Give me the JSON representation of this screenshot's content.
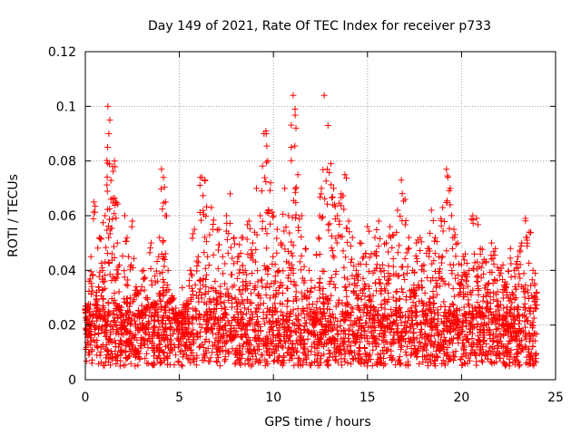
{
  "chart_data": {
    "type": "scatter",
    "title": "Day 149 of 2021, Rate Of TEC Index for receiver p733",
    "xlabel": "GPS time / hours",
    "ylabel": "ROTI / TECUs",
    "xlim": [
      0,
      25
    ],
    "ylim": [
      0,
      0.12
    ],
    "xticks": [
      "0",
      "5",
      "10",
      "15",
      "20",
      "25"
    ],
    "yticks": [
      "0",
      "0.02",
      "0.04",
      "0.06",
      "0.08",
      "0.1",
      "0.12"
    ],
    "grid": true,
    "marker": "+",
    "color": "#ff0000",
    "series": [
      {
        "x": [
          0.05,
          0.15,
          0.3,
          0.45,
          0.6,
          0.75,
          0.9,
          1.05,
          1.2,
          1.25,
          1.3,
          1.45,
          1.55,
          1.6,
          1.7,
          1.8,
          1.95,
          2.1,
          2.3,
          2.5,
          2.7,
          2.9,
          3.1,
          3.3,
          3.5,
          3.7,
          3.9,
          4.05,
          4.15,
          4.25,
          4.4,
          4.6,
          4.8,
          5.0,
          5.2,
          5.4,
          5.6,
          5.8,
          6.0,
          6.2,
          6.35,
          6.5,
          6.7,
          6.9,
          7.1,
          7.3,
          7.5,
          7.7,
          7.9,
          8.1,
          8.3,
          8.5,
          8.7,
          8.9,
          9.1,
          9.3,
          9.5,
          9.6,
          9.7,
          9.85,
          10.0,
          10.2,
          10.4,
          10.6,
          10.8,
          10.95,
          11.05,
          11.15,
          11.3,
          11.5,
          11.7,
          11.9,
          12.1,
          12.25,
          12.4,
          12.55,
          12.7,
          12.9,
          13.05,
          13.2,
          13.4,
          13.6,
          13.8,
          14.0,
          14.2,
          14.4,
          14.6,
          14.8,
          15.0,
          15.2,
          15.4,
          15.6,
          15.8,
          16.0,
          16.2,
          16.4,
          16.6,
          16.8,
          17.0,
          17.2,
          17.4,
          17.6,
          17.8,
          18.0,
          18.2,
          18.4,
          18.6,
          18.8,
          19.0,
          19.2,
          19.4,
          19.6,
          19.8,
          20.0,
          20.2,
          20.4,
          20.6,
          20.8,
          21.0,
          21.2,
          21.4,
          21.6,
          21.8,
          22.0,
          22.2,
          22.4,
          22.6,
          22.8,
          23.0,
          23.2,
          23.4,
          23.6,
          23.8,
          24.0
        ],
        "y": [
          0.027,
          0.013,
          0.045,
          0.065,
          0.032,
          0.052,
          0.041,
          0.06,
          0.1,
          0.09,
          0.095,
          0.078,
          0.08,
          0.065,
          0.05,
          0.027,
          0.019,
          0.06,
          0.045,
          0.058,
          0.034,
          0.018,
          0.04,
          0.03,
          0.05,
          0.028,
          0.045,
          0.077,
          0.074,
          0.06,
          0.04,
          0.03,
          0.022,
          0.018,
          0.015,
          0.028,
          0.04,
          0.055,
          0.045,
          0.074,
          0.073,
          0.045,
          0.063,
          0.036,
          0.055,
          0.045,
          0.06,
          0.068,
          0.052,
          0.045,
          0.052,
          0.04,
          0.058,
          0.05,
          0.07,
          0.06,
          0.09,
          0.091,
          0.08,
          0.072,
          0.06,
          0.055,
          0.05,
          0.07,
          0.06,
          0.085,
          0.104,
          0.099,
          0.075,
          0.06,
          0.048,
          0.04,
          0.02,
          0.02,
          0.052,
          0.07,
          0.104,
          0.093,
          0.079,
          0.07,
          0.06,
          0.068,
          0.075,
          0.058,
          0.052,
          0.04,
          0.05,
          0.045,
          0.056,
          0.046,
          0.052,
          0.058,
          0.042,
          0.05,
          0.056,
          0.053,
          0.062,
          0.073,
          0.066,
          0.052,
          0.04,
          0.05,
          0.052,
          0.042,
          0.048,
          0.062,
          0.052,
          0.045,
          0.063,
          0.077,
          0.07,
          0.055,
          0.05,
          0.042,
          0.046,
          0.04,
          0.06,
          0.059,
          0.048,
          0.044,
          0.035,
          0.05,
          0.048,
          0.04,
          0.042,
          0.035,
          0.048,
          0.04,
          0.045,
          0.05,
          0.059,
          0.054,
          0.04,
          0.032
        ],
        "baseline_range": [
          0.005,
          0.025
        ]
      }
    ]
  }
}
